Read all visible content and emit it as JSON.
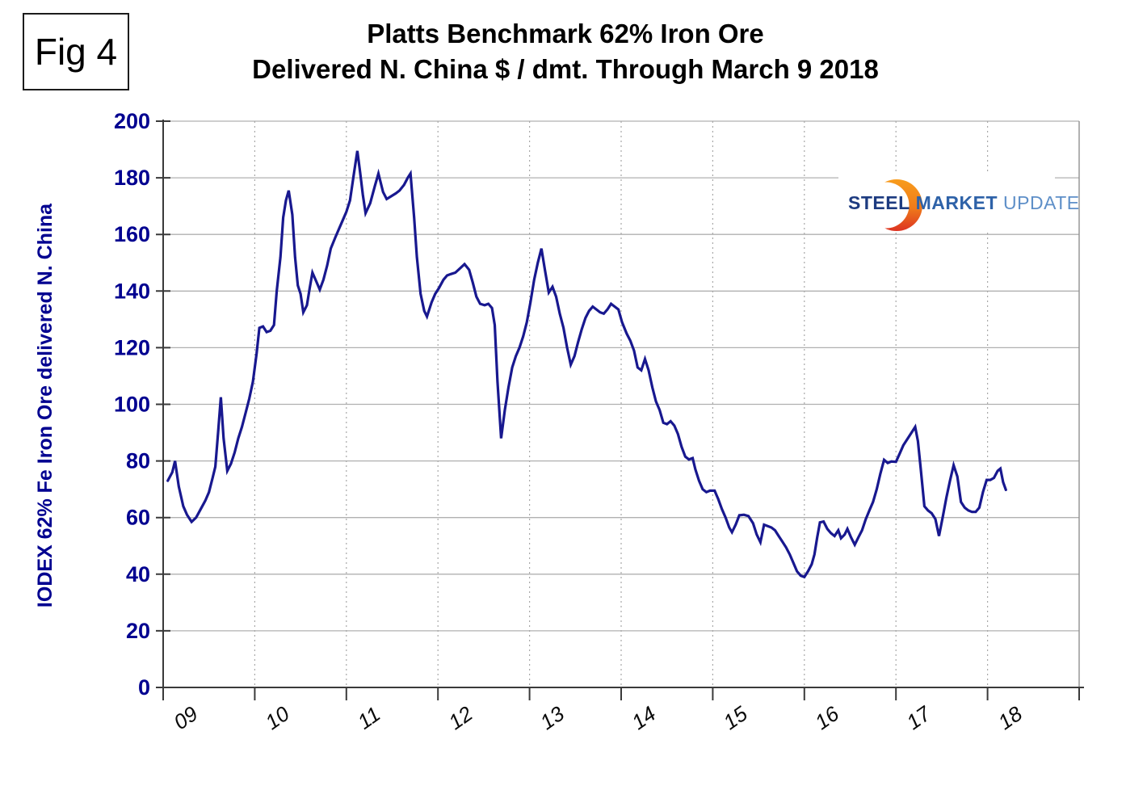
{
  "fig_label": "Fig 4",
  "title": {
    "line1": "Platts Benchmark 62% Iron Ore",
    "line2": "Delivered N. China $ / dmt. Through March 9 2018"
  },
  "logo": {
    "word1": "STEEL",
    "word2": "MARKET",
    "word3": "UPDATE",
    "crescent_top_color": "#f89c1c",
    "crescent_bottom_color": "#dd3322"
  },
  "colors": {
    "line": "#18188f",
    "axis": "#3a3a3a",
    "h_grid": "#b0b0b0",
    "v_grid": "#a8a8a8",
    "right_border": "#909090",
    "tick_label_y": "#000090",
    "tick_label_x": "#0a0a0a"
  },
  "chart_data": {
    "type": "line",
    "title": "Platts Benchmark 62% Iron Ore Delivered N. China $ / dmt. Through March 9 2018",
    "xlabel": "",
    "ylabel": "IODEX 62% Fe Iron Ore delivered N. China",
    "ylim": [
      0,
      200
    ],
    "y_ticks": [
      0,
      20,
      40,
      60,
      80,
      100,
      120,
      140,
      160,
      180,
      200
    ],
    "x_domain": [
      2009,
      2019
    ],
    "x_tick_labels": [
      "09",
      "10",
      "11",
      "12",
      "13",
      "14",
      "15",
      "16",
      "17",
      "18"
    ],
    "grid": {
      "horizontal": "solid",
      "vertical": "dotted"
    },
    "legend": "none",
    "series": [
      {
        "name": "IODEX 62% Fe Iron Ore delivered N. China",
        "color": "#18188f",
        "points": [
          [
            2009.05,
            73
          ],
          [
            2009.1,
            76
          ],
          [
            2009.13,
            80
          ],
          [
            2009.17,
            71
          ],
          [
            2009.22,
            64
          ],
          [
            2009.26,
            61
          ],
          [
            2009.31,
            58.5
          ],
          [
            2009.36,
            60
          ],
          [
            2009.41,
            63
          ],
          [
            2009.46,
            66
          ],
          [
            2009.5,
            69
          ],
          [
            2009.54,
            74
          ],
          [
            2009.57,
            78
          ],
          [
            2009.6,
            90
          ],
          [
            2009.63,
            102.5
          ],
          [
            2009.66,
            88
          ],
          [
            2009.7,
            76.5
          ],
          [
            2009.74,
            79
          ],
          [
            2009.78,
            83
          ],
          [
            2009.82,
            88
          ],
          [
            2009.86,
            92
          ],
          [
            2009.9,
            97
          ],
          [
            2009.94,
            102
          ],
          [
            2009.98,
            108
          ],
          [
            2010.02,
            118
          ],
          [
            2010.05,
            127
          ],
          [
            2010.09,
            127.5
          ],
          [
            2010.13,
            125.5
          ],
          [
            2010.17,
            126
          ],
          [
            2010.21,
            128
          ],
          [
            2010.24,
            140
          ],
          [
            2010.28,
            152
          ],
          [
            2010.31,
            166
          ],
          [
            2010.34,
            172
          ],
          [
            2010.37,
            175.5
          ],
          [
            2010.41,
            167
          ],
          [
            2010.44,
            152
          ],
          [
            2010.47,
            142
          ],
          [
            2010.5,
            139
          ],
          [
            2010.53,
            132.5
          ],
          [
            2010.57,
            135
          ],
          [
            2010.6,
            141
          ],
          [
            2010.63,
            146.5
          ],
          [
            2010.67,
            143.5
          ],
          [
            2010.71,
            140.5
          ],
          [
            2010.75,
            144
          ],
          [
            2010.79,
            149
          ],
          [
            2010.83,
            155
          ],
          [
            2010.88,
            159
          ],
          [
            2010.92,
            162
          ],
          [
            2010.96,
            165
          ],
          [
            2011.0,
            168
          ],
          [
            2011.04,
            172
          ],
          [
            2011.08,
            181
          ],
          [
            2011.12,
            189.5
          ],
          [
            2011.15,
            182
          ],
          [
            2011.18,
            174
          ],
          [
            2011.21,
            167.5
          ],
          [
            2011.26,
            171
          ],
          [
            2011.31,
            177
          ],
          [
            2011.35,
            181.5
          ],
          [
            2011.4,
            175
          ],
          [
            2011.44,
            172.5
          ],
          [
            2011.49,
            173.5
          ],
          [
            2011.54,
            174.5
          ],
          [
            2011.58,
            175.5
          ],
          [
            2011.63,
            177.5
          ],
          [
            2011.67,
            180
          ],
          [
            2011.7,
            181.5
          ],
          [
            2011.74,
            166
          ],
          [
            2011.77,
            152
          ],
          [
            2011.81,
            139
          ],
          [
            2011.85,
            133
          ],
          [
            2011.88,
            131
          ],
          [
            2011.93,
            136
          ],
          [
            2011.97,
            139
          ],
          [
            2012.01,
            141
          ],
          [
            2012.06,
            144
          ],
          [
            2012.1,
            145.5
          ],
          [
            2012.14,
            146
          ],
          [
            2012.19,
            146.5
          ],
          [
            2012.24,
            148
          ],
          [
            2012.29,
            149.5
          ],
          [
            2012.34,
            147.5
          ],
          [
            2012.38,
            143
          ],
          [
            2012.42,
            138
          ],
          [
            2012.46,
            135.5
          ],
          [
            2012.51,
            135
          ],
          [
            2012.55,
            135.5
          ],
          [
            2012.59,
            134
          ],
          [
            2012.62,
            128
          ],
          [
            2012.65,
            108
          ],
          [
            2012.69,
            88
          ],
          [
            2012.73,
            98
          ],
          [
            2012.77,
            106
          ],
          [
            2012.81,
            113
          ],
          [
            2012.85,
            117
          ],
          [
            2012.89,
            120
          ],
          [
            2012.93,
            124
          ],
          [
            2012.97,
            129
          ],
          [
            2013.01,
            136
          ],
          [
            2013.05,
            144
          ],
          [
            2013.09,
            150
          ],
          [
            2013.13,
            155
          ],
          [
            2013.17,
            147
          ],
          [
            2013.21,
            139.5
          ],
          [
            2013.25,
            141.5
          ],
          [
            2013.29,
            138
          ],
          [
            2013.33,
            132
          ],
          [
            2013.37,
            127
          ],
          [
            2013.41,
            120
          ],
          [
            2013.45,
            114
          ],
          [
            2013.49,
            117
          ],
          [
            2013.53,
            122
          ],
          [
            2013.57,
            126.5
          ],
          [
            2013.61,
            130.5
          ],
          [
            2013.65,
            133
          ],
          [
            2013.69,
            134.5
          ],
          [
            2013.73,
            133.5
          ],
          [
            2013.77,
            132.5
          ],
          [
            2013.81,
            132
          ],
          [
            2013.85,
            133.5
          ],
          [
            2013.89,
            135.5
          ],
          [
            2013.93,
            134.5
          ],
          [
            2013.97,
            133.5
          ],
          [
            2014.01,
            129
          ],
          [
            2014.06,
            125
          ],
          [
            2014.1,
            122.5
          ],
          [
            2014.14,
            119
          ],
          [
            2014.18,
            113
          ],
          [
            2014.22,
            112
          ],
          [
            2014.26,
            116
          ],
          [
            2014.3,
            112
          ],
          [
            2014.34,
            106
          ],
          [
            2014.38,
            101
          ],
          [
            2014.42,
            98
          ],
          [
            2014.46,
            93.5
          ],
          [
            2014.5,
            93
          ],
          [
            2014.54,
            94
          ],
          [
            2014.58,
            92.5
          ],
          [
            2014.62,
            89.5
          ],
          [
            2014.66,
            85
          ],
          [
            2014.7,
            81.5
          ],
          [
            2014.74,
            80.5
          ],
          [
            2014.78,
            81
          ],
          [
            2014.81,
            77
          ],
          [
            2014.85,
            73
          ],
          [
            2014.89,
            70
          ],
          [
            2014.93,
            69
          ],
          [
            2014.97,
            69.5
          ],
          [
            2015.02,
            69.5
          ],
          [
            2015.06,
            66.5
          ],
          [
            2015.1,
            63
          ],
          [
            2015.14,
            60
          ],
          [
            2015.18,
            56.5
          ],
          [
            2015.21,
            54.8
          ],
          [
            2015.25,
            57.5
          ],
          [
            2015.29,
            60.8
          ],
          [
            2015.34,
            61
          ],
          [
            2015.39,
            60.5
          ],
          [
            2015.44,
            58
          ],
          [
            2015.48,
            54
          ],
          [
            2015.52,
            51.3
          ],
          [
            2015.56,
            57.5
          ],
          [
            2015.6,
            57
          ],
          [
            2015.64,
            56.5
          ],
          [
            2015.68,
            55.5
          ],
          [
            2015.72,
            53.5
          ],
          [
            2015.76,
            51.5
          ],
          [
            2015.8,
            49.5
          ],
          [
            2015.84,
            47
          ],
          [
            2015.88,
            44
          ],
          [
            2015.92,
            41
          ],
          [
            2015.96,
            39.5
          ],
          [
            2016.0,
            39
          ],
          [
            2016.04,
            41
          ],
          [
            2016.08,
            43.5
          ],
          [
            2016.11,
            47
          ],
          [
            2016.14,
            53
          ],
          [
            2016.17,
            58.3
          ],
          [
            2016.21,
            58.6
          ],
          [
            2016.25,
            56
          ],
          [
            2016.29,
            54.5
          ],
          [
            2016.33,
            53.5
          ],
          [
            2016.37,
            55.5
          ],
          [
            2016.4,
            52.7
          ],
          [
            2016.44,
            54
          ],
          [
            2016.47,
            56
          ],
          [
            2016.51,
            53
          ],
          [
            2016.55,
            50.4
          ],
          [
            2016.59,
            53
          ],
          [
            2016.63,
            55.5
          ],
          [
            2016.67,
            59.4
          ],
          [
            2016.71,
            62.5
          ],
          [
            2016.75,
            65.5
          ],
          [
            2016.79,
            70
          ],
          [
            2016.83,
            75.5
          ],
          [
            2016.87,
            80.4
          ],
          [
            2016.91,
            79.3
          ],
          [
            2016.95,
            79.8
          ],
          [
            2017.0,
            79.7
          ],
          [
            2017.04,
            82.5
          ],
          [
            2017.08,
            85.5
          ],
          [
            2017.13,
            88
          ],
          [
            2017.17,
            90
          ],
          [
            2017.21,
            92
          ],
          [
            2017.24,
            87
          ],
          [
            2017.27,
            77.5
          ],
          [
            2017.31,
            64
          ],
          [
            2017.35,
            62.5
          ],
          [
            2017.39,
            61.5
          ],
          [
            2017.43,
            59.5
          ],
          [
            2017.47,
            53.5
          ],
          [
            2017.51,
            60
          ],
          [
            2017.55,
            67
          ],
          [
            2017.59,
            73
          ],
          [
            2017.63,
            78.5
          ],
          [
            2017.67,
            74.5
          ],
          [
            2017.71,
            65.5
          ],
          [
            2017.75,
            63.5
          ],
          [
            2017.79,
            62.5
          ],
          [
            2017.83,
            62
          ],
          [
            2017.87,
            62
          ],
          [
            2017.91,
            63.5
          ],
          [
            2017.95,
            69
          ],
          [
            2017.99,
            73.3
          ],
          [
            2018.03,
            73.3
          ],
          [
            2018.07,
            74
          ],
          [
            2018.11,
            76.5
          ],
          [
            2018.14,
            77.3
          ],
          [
            2018.17,
            72.5
          ],
          [
            2018.2,
            69.8
          ]
        ]
      }
    ]
  }
}
